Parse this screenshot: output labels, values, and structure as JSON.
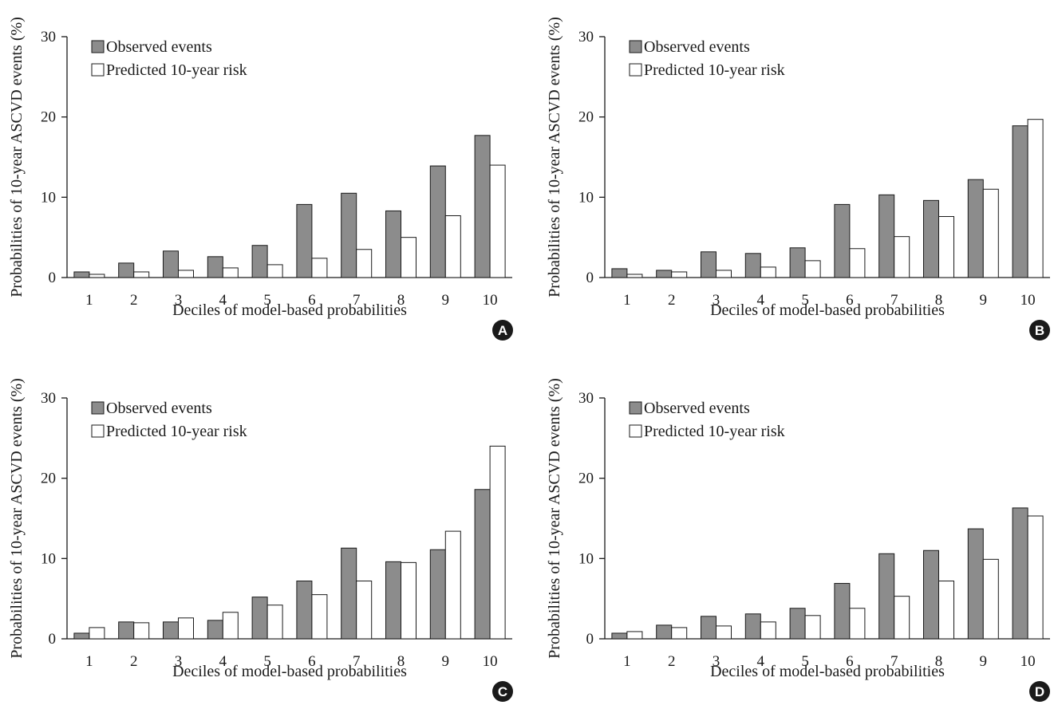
{
  "colors": {
    "observed": "#8c8c8c",
    "predicted": "#ffffff",
    "stroke": "#1a1a1a",
    "badge": "#1a1a1a"
  },
  "chart_data": [
    {
      "panel": "A",
      "type": "bar",
      "xlabel": "Deciles of model-based probabilities",
      "ylabel": "Probabilities of 10-year ASCVD events (%)",
      "ylim": [
        0,
        30
      ],
      "yticks": [
        0,
        10,
        20,
        30
      ],
      "legend_position": "top-left",
      "categories": [
        "1",
        "2",
        "3",
        "4",
        "5",
        "6",
        "7",
        "8",
        "9",
        "10"
      ],
      "series": [
        {
          "name": "Observed events",
          "values": [
            0.7,
            1.8,
            3.3,
            2.6,
            4.0,
            9.1,
            10.5,
            8.3,
            13.9,
            17.7
          ]
        },
        {
          "name": "Predicted 10-year risk",
          "values": [
            0.4,
            0.7,
            0.9,
            1.2,
            1.6,
            2.4,
            3.5,
            5.0,
            7.7,
            14.0
          ]
        }
      ]
    },
    {
      "panel": "B",
      "type": "bar",
      "xlabel": "Deciles of model-based probabilities",
      "ylabel": "Probabilities of 10-year ASCVD events (%)",
      "ylim": [
        0,
        30
      ],
      "yticks": [
        0,
        10,
        20,
        30
      ],
      "legend_position": "top-left",
      "categories": [
        "1",
        "2",
        "3",
        "4",
        "5",
        "6",
        "7",
        "8",
        "9",
        "10"
      ],
      "series": [
        {
          "name": "Observed events",
          "values": [
            1.1,
            0.9,
            3.2,
            3.0,
            3.7,
            9.1,
            10.3,
            9.6,
            12.2,
            18.9
          ]
        },
        {
          "name": "Predicted 10-year risk",
          "values": [
            0.4,
            0.7,
            0.9,
            1.3,
            2.1,
            3.6,
            5.1,
            7.6,
            11.0,
            19.7
          ]
        }
      ]
    },
    {
      "panel": "C",
      "type": "bar",
      "xlabel": "Deciles of model-based probabilities",
      "ylabel": "Probabilities of 10-year ASCVD events (%)",
      "ylim": [
        0,
        30
      ],
      "yticks": [
        0,
        10,
        20,
        30
      ],
      "legend_position": "top-left",
      "categories": [
        "1",
        "2",
        "3",
        "4",
        "5",
        "6",
        "7",
        "8",
        "9",
        "10"
      ],
      "series": [
        {
          "name": "Observed events",
          "values": [
            0.7,
            2.1,
            2.1,
            2.3,
            5.2,
            7.2,
            11.3,
            9.6,
            11.1,
            18.6
          ]
        },
        {
          "name": "Predicted 10-year risk",
          "values": [
            1.4,
            2.0,
            2.6,
            3.3,
            4.2,
            5.5,
            7.2,
            9.5,
            13.4,
            24.0
          ]
        }
      ]
    },
    {
      "panel": "D",
      "type": "bar",
      "xlabel": "Deciles of model-based probabilities",
      "ylabel": "Probabilities of 10-year ASCVD events (%)",
      "ylim": [
        0,
        30
      ],
      "yticks": [
        0,
        10,
        20,
        30
      ],
      "legend_position": "top-left",
      "categories": [
        "1",
        "2",
        "3",
        "4",
        "5",
        "6",
        "7",
        "8",
        "9",
        "10"
      ],
      "series": [
        {
          "name": "Observed events",
          "values": [
            0.7,
            1.7,
            2.8,
            3.1,
            3.8,
            6.9,
            10.6,
            11.0,
            13.7,
            16.3
          ]
        },
        {
          "name": "Predicted 10-year risk",
          "values": [
            0.9,
            1.4,
            1.6,
            2.1,
            2.9,
            3.8,
            5.3,
            7.2,
            9.9,
            15.3
          ]
        }
      ]
    }
  ]
}
